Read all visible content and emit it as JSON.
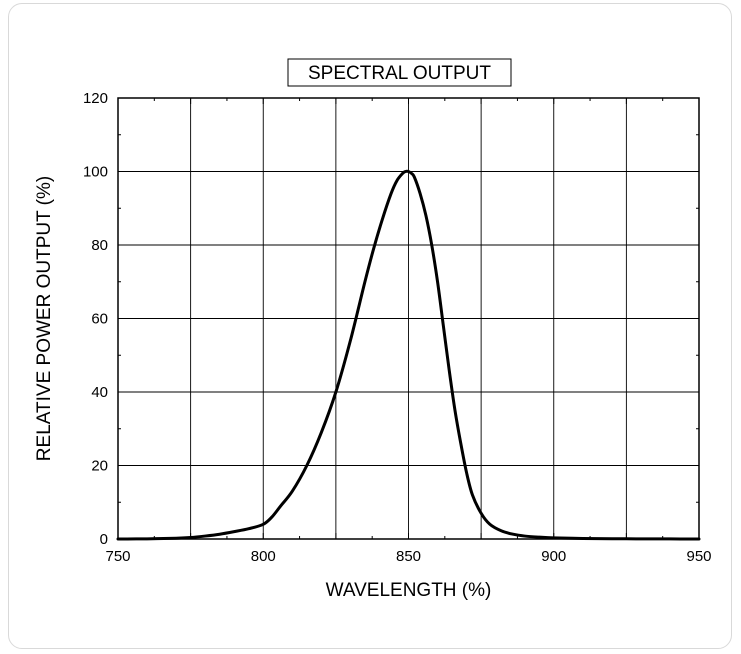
{
  "chart_data": {
    "type": "line",
    "title": "SPECTRAL OUTPUT",
    "xlabel": "WAVELENGTH (%)",
    "ylabel": "RELATIVE POWER OUTPUT (%)",
    "xlim": [
      750,
      950
    ],
    "ylim": [
      0,
      120
    ],
    "x_ticks": [
      750,
      800,
      850,
      900,
      950
    ],
    "y_ticks": [
      0,
      20,
      40,
      60,
      80,
      100,
      120
    ],
    "grid": true,
    "series": [
      {
        "color": "#000000",
        "x": [
          750,
          760,
          770,
          775,
          780,
          785,
          790,
          795,
          800,
          803,
          806,
          810,
          815,
          820,
          825,
          830,
          835,
          838,
          841,
          844,
          846,
          848,
          849,
          850,
          851,
          852,
          854,
          856,
          858,
          860,
          862,
          864,
          866,
          868,
          870,
          872,
          875,
          878,
          882,
          886,
          890,
          895,
          900,
          910,
          920,
          930,
          940,
          950
        ],
        "y": [
          0,
          0.05,
          0.2,
          0.4,
          0.8,
          1.3,
          2.0,
          2.8,
          4.0,
          6.0,
          9.0,
          13.0,
          20.0,
          29.0,
          40.0,
          54.0,
          70.0,
          79.0,
          87.0,
          94.0,
          97.5,
          99.5,
          100,
          100,
          99.5,
          98.5,
          94.0,
          88.0,
          80.0,
          70.0,
          58.0,
          46.0,
          35.0,
          26.0,
          18.0,
          12.0,
          7.0,
          4.0,
          2.2,
          1.3,
          0.8,
          0.5,
          0.3,
          0.15,
          0.08,
          0.04,
          0.02,
          0
        ]
      }
    ]
  }
}
